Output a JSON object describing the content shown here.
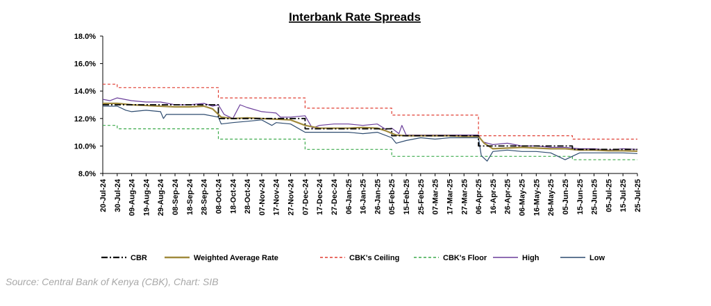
{
  "chart_data": {
    "type": "line",
    "title": "Interbank Rate Spreads",
    "ylim": [
      8.0,
      18.0
    ],
    "y_ticks": [
      "18.0%",
      "16.0%",
      "14.0%",
      "12.0%",
      "10.0%",
      "8.0%"
    ],
    "y_tick_values": [
      18,
      16,
      14,
      12,
      10,
      8
    ],
    "x_ticks": [
      "20-Jul-24",
      "30-Jul-24",
      "09-Aug-24",
      "19-Aug-24",
      "29-Aug-24",
      "08-Sep-24",
      "18-Sep-24",
      "28-Sep-24",
      "08-Oct-24",
      "18-Oct-24",
      "28-Oct-24",
      "07-Nov-24",
      "17-Nov-24",
      "27-Nov-24",
      "07-Dec-24",
      "17-Dec-24",
      "27-Dec-24",
      "06-Jan-25",
      "16-Jan-25",
      "26-Jan-25",
      "05-Feb-25",
      "15-Feb-25",
      "25-Feb-25",
      "07-Mar-25",
      "17-Mar-25",
      "27-Mar-25",
      "06-Apr-25",
      "16-Apr-25",
      "26-Apr-25",
      "06-May-25",
      "16-May-25",
      "26-May-25",
      "05-Jun-25",
      "15-Jun-25",
      "25-Jun-25",
      "05-Jul-25",
      "15-Jul-25",
      "25-Jul-25"
    ],
    "grid": false,
    "legend_position": "bottom",
    "series": [
      {
        "name": "CBR",
        "color": "#000000",
        "style": "dash-dot",
        "points": [
          [
            "20-Jul-24",
            13.0
          ],
          [
            "08-Oct-24",
            13.0
          ],
          [
            "08-Oct-24",
            12.0
          ],
          [
            "07-Dec-24",
            12.0
          ],
          [
            "07-Dec-24",
            11.25
          ],
          [
            "05-Feb-25",
            11.25
          ],
          [
            "05-Feb-25",
            10.75
          ],
          [
            "06-Apr-25",
            10.75
          ],
          [
            "06-Apr-25",
            10.0
          ],
          [
            "10-Jun-25",
            10.0
          ],
          [
            "10-Jun-25",
            9.75
          ],
          [
            "25-Jul-25",
            9.75
          ]
        ]
      },
      {
        "name": "Weighted Average Rate",
        "color": "#a08a3c",
        "style": "solid",
        "points": [
          [
            "20-Jul-24",
            13.1
          ],
          [
            "30-Jul-24",
            13.1
          ],
          [
            "09-Aug-24",
            13.0
          ],
          [
            "19-Aug-24",
            12.95
          ],
          [
            "29-Aug-24",
            12.9
          ],
          [
            "08-Sep-24",
            12.85
          ],
          [
            "18-Sep-24",
            12.85
          ],
          [
            "28-Sep-24",
            12.9
          ],
          [
            "04-Oct-24",
            12.7
          ],
          [
            "10-Oct-24",
            12.1
          ],
          [
            "18-Oct-24",
            12.0
          ],
          [
            "28-Oct-24",
            12.05
          ],
          [
            "07-Nov-24",
            12.0
          ],
          [
            "17-Nov-24",
            11.95
          ],
          [
            "27-Nov-24",
            11.9
          ],
          [
            "07-Dec-24",
            11.5
          ],
          [
            "17-Dec-24",
            11.3
          ],
          [
            "27-Dec-24",
            11.3
          ],
          [
            "06-Jan-25",
            11.3
          ],
          [
            "16-Jan-25",
            11.35
          ],
          [
            "26-Jan-25",
            11.3
          ],
          [
            "01-Feb-25",
            11.1
          ],
          [
            "08-Feb-25",
            10.8
          ],
          [
            "15-Feb-25",
            10.75
          ],
          [
            "25-Feb-25",
            10.75
          ],
          [
            "07-Mar-25",
            10.75
          ],
          [
            "17-Mar-25",
            10.75
          ],
          [
            "27-Mar-25",
            10.7
          ],
          [
            "06-Apr-25",
            10.7
          ],
          [
            "10-Apr-25",
            10.2
          ],
          [
            "16-Apr-25",
            9.8
          ],
          [
            "26-Apr-25",
            9.85
          ],
          [
            "06-May-25",
            9.9
          ],
          [
            "16-May-25",
            9.85
          ],
          [
            "26-May-25",
            9.8
          ],
          [
            "05-Jun-25",
            9.8
          ],
          [
            "15-Jun-25",
            9.7
          ],
          [
            "25-Jun-25",
            9.7
          ],
          [
            "05-Jul-25",
            9.65
          ],
          [
            "15-Jul-25",
            9.65
          ],
          [
            "25-Jul-25",
            9.62
          ]
        ]
      },
      {
        "name": "CBK's Ceiling",
        "color": "#e03c31",
        "style": "dashed",
        "points": [
          [
            "20-Jul-24",
            14.5
          ],
          [
            "30-Jul-24",
            14.5
          ],
          [
            "30-Jul-24",
            14.25
          ],
          [
            "08-Oct-24",
            14.25
          ],
          [
            "08-Oct-24",
            13.5
          ],
          [
            "07-Dec-24",
            13.5
          ],
          [
            "07-Dec-24",
            12.75
          ],
          [
            "05-Feb-25",
            12.75
          ],
          [
            "05-Feb-25",
            12.25
          ],
          [
            "06-Apr-25",
            12.25
          ],
          [
            "06-Apr-25",
            10.75
          ],
          [
            "10-Jun-25",
            10.75
          ],
          [
            "10-Jun-25",
            10.5
          ],
          [
            "25-Jul-25",
            10.5
          ]
        ]
      },
      {
        "name": "CBK's Floor",
        "color": "#3aaa4a",
        "style": "dashed",
        "points": [
          [
            "20-Jul-24",
            11.5
          ],
          [
            "30-Jul-24",
            11.5
          ],
          [
            "30-Jul-24",
            11.25
          ],
          [
            "08-Oct-24",
            11.25
          ],
          [
            "08-Oct-24",
            10.5
          ],
          [
            "07-Dec-24",
            10.5
          ],
          [
            "07-Dec-24",
            9.75
          ],
          [
            "05-Feb-25",
            9.75
          ],
          [
            "05-Feb-25",
            9.25
          ],
          [
            "06-Apr-25",
            9.25
          ],
          [
            "10-Jun-25",
            9.25
          ],
          [
            "10-Jun-25",
            9.0
          ],
          [
            "25-Jul-25",
            9.0
          ]
        ]
      },
      {
        "name": "High",
        "color": "#6a3d9a",
        "style": "solid",
        "points": [
          [
            "20-Jul-24",
            13.4
          ],
          [
            "25-Jul-24",
            13.3
          ],
          [
            "30-Jul-24",
            13.5
          ],
          [
            "09-Aug-24",
            13.3
          ],
          [
            "19-Aug-24",
            13.2
          ],
          [
            "29-Aug-24",
            13.2
          ],
          [
            "08-Sep-24",
            13.0
          ],
          [
            "18-Sep-24",
            13.0
          ],
          [
            "28-Sep-24",
            13.1
          ],
          [
            "04-Oct-24",
            12.9
          ],
          [
            "08-Oct-24",
            13.0
          ],
          [
            "12-Oct-24",
            12.3
          ],
          [
            "18-Oct-24",
            12.0
          ],
          [
            "23-Oct-24",
            13.0
          ],
          [
            "28-Oct-24",
            12.8
          ],
          [
            "07-Nov-24",
            12.5
          ],
          [
            "17-Nov-24",
            12.4
          ],
          [
            "20-Nov-24",
            12.1
          ],
          [
            "27-Nov-24",
            12.1
          ],
          [
            "07-Dec-24",
            12.2
          ],
          [
            "12-Dec-24",
            11.3
          ],
          [
            "17-Dec-24",
            11.5
          ],
          [
            "27-Dec-24",
            11.6
          ],
          [
            "06-Jan-25",
            11.6
          ],
          [
            "16-Jan-25",
            11.5
          ],
          [
            "26-Jan-25",
            11.6
          ],
          [
            "01-Feb-25",
            11.2
          ],
          [
            "05-Feb-25",
            11.3
          ],
          [
            "10-Feb-25",
            10.9
          ],
          [
            "12-Feb-25",
            11.5
          ],
          [
            "15-Feb-25",
            10.8
          ],
          [
            "25-Feb-25",
            10.8
          ],
          [
            "07-Mar-25",
            10.8
          ],
          [
            "17-Mar-25",
            10.8
          ],
          [
            "27-Mar-25",
            10.8
          ],
          [
            "06-Apr-25",
            10.8
          ],
          [
            "09-Apr-25",
            10.3
          ],
          [
            "16-Apr-25",
            10.1
          ],
          [
            "26-Apr-25",
            10.2
          ],
          [
            "06-May-25",
            10.0
          ],
          [
            "16-May-25",
            10.0
          ],
          [
            "26-May-25",
            9.9
          ],
          [
            "05-Jun-25",
            9.9
          ],
          [
            "15-Jun-25",
            9.8
          ],
          [
            "25-Jun-25",
            9.8
          ],
          [
            "05-Jul-25",
            9.7
          ],
          [
            "15-Jul-25",
            9.8
          ],
          [
            "25-Jul-25",
            9.75
          ]
        ]
      },
      {
        "name": "Low",
        "color": "#2c4a6e",
        "style": "solid",
        "points": [
          [
            "20-Jul-24",
            12.9
          ],
          [
            "30-Jul-24",
            12.9
          ],
          [
            "05-Aug-24",
            12.6
          ],
          [
            "09-Aug-24",
            12.5
          ],
          [
            "19-Aug-24",
            12.6
          ],
          [
            "29-Aug-24",
            12.5
          ],
          [
            "31-Aug-24",
            12.0
          ],
          [
            "02-Sep-24",
            12.3
          ],
          [
            "08-Sep-24",
            12.3
          ],
          [
            "18-Sep-24",
            12.3
          ],
          [
            "28-Sep-24",
            12.3
          ],
          [
            "08-Oct-24",
            12.1
          ],
          [
            "10-Oct-24",
            11.6
          ],
          [
            "18-Oct-24",
            11.7
          ],
          [
            "28-Oct-24",
            11.8
          ],
          [
            "07-Nov-24",
            11.9
          ],
          [
            "14-Nov-24",
            11.5
          ],
          [
            "17-Nov-24",
            11.7
          ],
          [
            "27-Nov-24",
            11.6
          ],
          [
            "07-Dec-24",
            11.0
          ],
          [
            "17-Dec-24",
            11.0
          ],
          [
            "27-Dec-24",
            11.0
          ],
          [
            "06-Jan-25",
            11.0
          ],
          [
            "16-Jan-25",
            10.9
          ],
          [
            "26-Jan-25",
            11.0
          ],
          [
            "05-Feb-25",
            10.6
          ],
          [
            "08-Feb-25",
            10.2
          ],
          [
            "15-Feb-25",
            10.4
          ],
          [
            "25-Feb-25",
            10.6
          ],
          [
            "07-Mar-25",
            10.5
          ],
          [
            "17-Mar-25",
            10.6
          ],
          [
            "27-Mar-25",
            10.6
          ],
          [
            "06-Apr-25",
            10.6
          ],
          [
            "08-Apr-25",
            9.3
          ],
          [
            "12-Apr-25",
            8.9
          ],
          [
            "16-Apr-25",
            9.6
          ],
          [
            "26-Apr-25",
            9.7
          ],
          [
            "06-May-25",
            9.6
          ],
          [
            "16-May-25",
            9.6
          ],
          [
            "26-May-25",
            9.5
          ],
          [
            "05-Jun-25",
            9.0
          ],
          [
            "09-Jun-25",
            9.2
          ],
          [
            "15-Jun-25",
            9.5
          ],
          [
            "25-Jun-25",
            9.5
          ],
          [
            "05-Jul-25",
            9.5
          ],
          [
            "15-Jul-25",
            9.5
          ],
          [
            "25-Jul-25",
            9.45
          ]
        ]
      }
    ]
  },
  "source": "Source: Central Bank of Kenya (CBK), Chart: SIB"
}
